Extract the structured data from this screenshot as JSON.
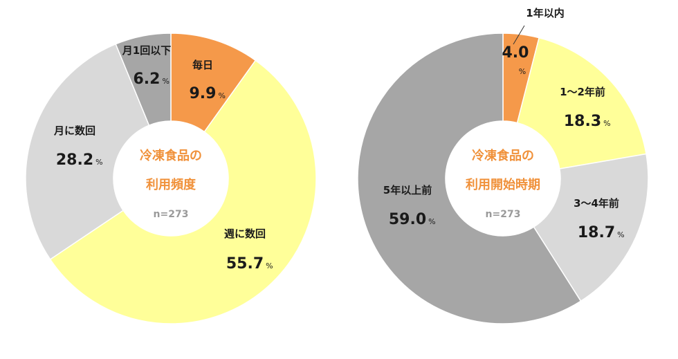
{
  "chart_data": [
    {
      "type": "pie",
      "title_lines": [
        "冷凍食品の",
        "利用頻度"
      ],
      "n_label": "n=273",
      "percent_unit": "%",
      "slices": [
        {
          "label": "毎日",
          "value": 9.9,
          "display": "9.9",
          "color": "#f5994a"
        },
        {
          "label": "週に数回",
          "value": 55.7,
          "display": "55.7",
          "color": "#ffff99"
        },
        {
          "label": "月に数回",
          "value": 28.2,
          "display": "28.2",
          "color": "#d9d9d9"
        },
        {
          "label": "月1回以下",
          "value": 6.2,
          "display": "6.2",
          "color": "#a6a6a6"
        }
      ]
    },
    {
      "type": "pie",
      "title_lines": [
        "冷凍食品の",
        "利用開始時期"
      ],
      "n_label": "n=273",
      "percent_unit": "%",
      "slices": [
        {
          "label": "1年以内",
          "value": 4.0,
          "display": "4.0",
          "color": "#f5994a"
        },
        {
          "label": "1〜2年前",
          "value": 18.3,
          "display": "18.3",
          "color": "#ffff99"
        },
        {
          "label": "3〜4年前",
          "value": 18.7,
          "display": "18.7",
          "color": "#d9d9d9"
        },
        {
          "label": "5年以上前",
          "value": 59.0,
          "display": "59.0",
          "color": "#a6a6a6"
        }
      ]
    }
  ]
}
